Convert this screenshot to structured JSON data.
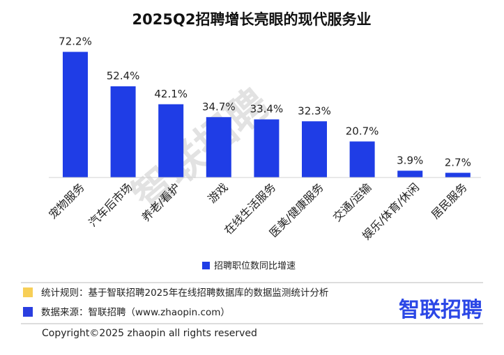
{
  "chart_data": {
    "type": "bar",
    "title": "2025Q2招聘增长亮眼的现代服务业",
    "categories": [
      "宠物服务",
      "汽车后市场",
      "养老/看护",
      "游戏",
      "在线生活服务",
      "医美/健康服务",
      "交通/运输",
      "娱乐/体育/休闲",
      "居民服务"
    ],
    "values": [
      72.2,
      52.4,
      42.1,
      34.7,
      33.4,
      32.3,
      20.7,
      3.9,
      2.7
    ],
    "value_labels": [
      "72.2%",
      "52.4%",
      "42.1%",
      "34.7%",
      "33.4%",
      "32.3%",
      "20.7%",
      "3.9%",
      "2.7%"
    ],
    "legend": "招聘职位数同比增速",
    "legend_position": "bottom",
    "xlabel": "",
    "ylabel": "",
    "ylim": [
      0,
      80
    ],
    "grid": false,
    "bar_color": "#1f3de6"
  },
  "watermark": "智联招聘",
  "footer": {
    "rule_text": "统计规则：基于智联招聘2025年在线招聘数据库的数据监测统计分析",
    "rule_color": "#f7cf57",
    "source_text": "数据来源：智联招聘（www.zhaopin.com）",
    "source_color": "#2a3ee0",
    "logo_text": "智联招聘",
    "copyright": "Copyright©2025 zhaopin all rights reserved"
  }
}
